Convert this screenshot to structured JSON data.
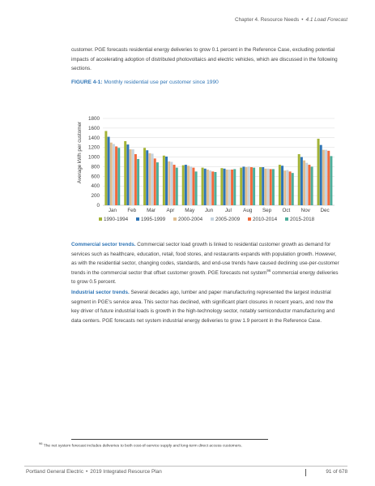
{
  "header": {
    "chapter": "Chapter 4. Resource Needs",
    "separator": "•",
    "section": "4.1 Load Forecast"
  },
  "intro_paragraph": "customer. PGE forecasts residential energy deliveries to grow 0.1 percent in the Reference Case, excluding potential impacts of accelerating adoption of distributed photovoltaics and electric vehicles, which are discussed in the following sections.",
  "figure": {
    "label": "FIGURE 4-1:",
    "title": "Monthly residential use per customer since 1990"
  },
  "chart_data": {
    "type": "bar",
    "title": "",
    "xlabel": "",
    "ylabel": "Average kWh per customer",
    "ylim": [
      0,
      1800
    ],
    "yticks": [
      0,
      200,
      400,
      600,
      800,
      1000,
      1200,
      1400,
      1600,
      1800
    ],
    "grid": true,
    "legend_position": "bottom",
    "categories": [
      "Jan",
      "Feb",
      "Mar",
      "Apr",
      "May",
      "Jun",
      "Jul",
      "Aug",
      "Sep",
      "Oct",
      "Nov",
      "Dec"
    ],
    "series": [
      {
        "name": "1990-1994",
        "color": "#a3b336",
        "values": [
          1540,
          1330,
          1190,
          1030,
          830,
          780,
          770,
          780,
          790,
          840,
          1060,
          1380
        ]
      },
      {
        "name": "1995-1999",
        "color": "#2e75b6",
        "values": [
          1420,
          1260,
          1140,
          1010,
          840,
          760,
          760,
          800,
          790,
          820,
          1000,
          1250
        ]
      },
      {
        "name": "2000-2004",
        "color": "#e0be90",
        "values": [
          1300,
          1160,
          1080,
          910,
          820,
          740,
          740,
          790,
          760,
          720,
          930,
          1150
        ]
      },
      {
        "name": "2005-2009",
        "color": "#c5d3df",
        "values": [
          1270,
          1160,
          1070,
          900,
          800,
          720,
          740,
          800,
          760,
          730,
          880,
          1150
        ]
      },
      {
        "name": "2010-2014",
        "color": "#f26a3c",
        "values": [
          1220,
          1060,
          970,
          840,
          780,
          700,
          740,
          790,
          750,
          700,
          840,
          1130
        ]
      },
      {
        "name": "2015-2018",
        "color": "#4cae9b",
        "values": [
          1190,
          960,
          890,
          780,
          700,
          690,
          750,
          780,
          750,
          670,
          800,
          1020
        ]
      }
    ]
  },
  "commercial": {
    "heading": "Commercial sector trends.",
    "text_a": " Commercial sector load growth is linked to residential customer growth as demand for services such as healthcare, education, retail, food stores, and restaurants expands with population growth. However, as with the residential sector, changing codes, standards, and end-use trends have caused declining use-per-customer trends in the commercial sector that offset customer growth. PGE forecasts net system",
    "footnote_ref": "96",
    "text_b": " commercial energy deliveries to grow 0.5 percent."
  },
  "industrial": {
    "heading": "Industrial sector trends.",
    "text": " Several decades ago, lumber and paper manufacturing represented the largest industrial segment in PGE's service area. This sector has declined, with significant plant closures in recent years, and now the key driver of future industrial loads is growth in the high-technology sector, notably semiconductor manufacturing and data centers. PGE forecasts net system industrial energy deliveries to grow 1.9 percent in the Reference Case."
  },
  "footnote": {
    "number": "96",
    "text": " The net system forecast includes deliveries to both cost-of-service supply and long-term direct access customers."
  },
  "footer": {
    "org": "Portland General Electric",
    "separator": "•",
    "doc": "2019 Integrated Resource Plan",
    "page": "91 of 678"
  }
}
